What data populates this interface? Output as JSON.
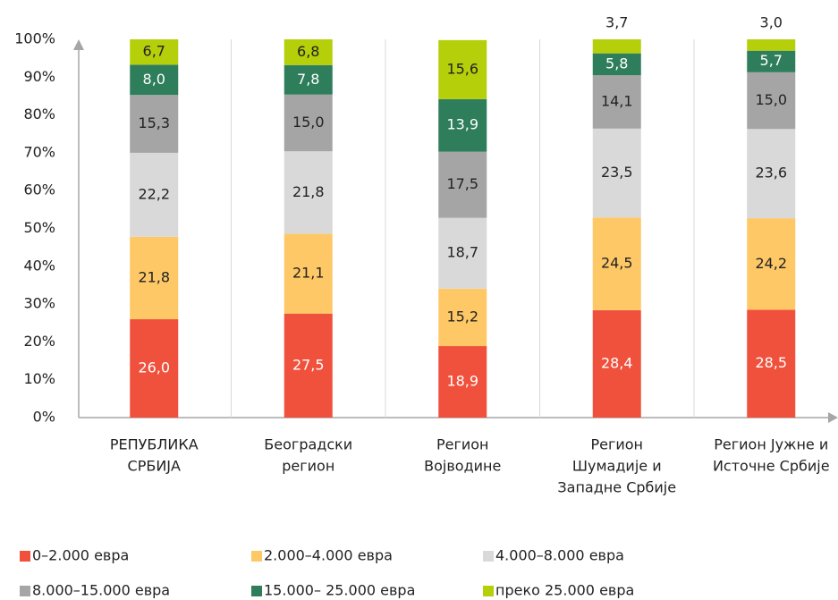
{
  "chart_data": {
    "type": "stacked_bar",
    "categories": [
      [
        "РЕПУБЛИКА",
        "СРБИЈА"
      ],
      [
        "Београдски",
        "регион"
      ],
      [
        "Регион",
        "Војводине"
      ],
      [
        "Регион",
        "Шумадије и",
        "Западне Србије"
      ],
      [
        "Регион Јужне и",
        "Источне Србије"
      ]
    ],
    "series": [
      {
        "name": "0–2.000 евра",
        "color": "#f0513c",
        "label_color": "#ffffff",
        "values": [
          26.0,
          27.5,
          18.9,
          28.4,
          28.5
        ],
        "value_labels": [
          "26,0",
          "27,5",
          "18,9",
          "28,4",
          "28,5"
        ]
      },
      {
        "name": "2.000–4.000 евра",
        "color": "#fec867",
        "label_color": "#222222",
        "values": [
          21.8,
          21.1,
          15.2,
          24.5,
          24.2
        ],
        "value_labels": [
          "21,8",
          "21,1",
          "15,2",
          "24,5",
          "24,2"
        ]
      },
      {
        "name": "4.000–8.000 евра",
        "color": "#d9d9d9",
        "label_color": "#222222",
        "values": [
          22.2,
          21.8,
          18.7,
          23.5,
          23.6
        ],
        "value_labels": [
          "22,2",
          "21,8",
          "18,7",
          "23,5",
          "23,6"
        ]
      },
      {
        "name": "8.000–15.000 евра",
        "color": "#a5a5a5",
        "label_color": "#222222",
        "values": [
          15.3,
          15.0,
          17.5,
          14.1,
          15.0
        ],
        "value_labels": [
          "15,3",
          "15,0",
          "17,5",
          "14,1",
          "15,0"
        ]
      },
      {
        "name": "15.000– 25.000 евра",
        "color": "#2e7d5b",
        "label_color": "#ffffff",
        "values": [
          8.0,
          7.8,
          13.9,
          5.8,
          5.7
        ],
        "value_labels": [
          "8,0",
          "7,8",
          "13,9",
          "5,8",
          "5,7"
        ]
      },
      {
        "name": "преко 25.000 евра",
        "color": "#b5cf0a",
        "label_color": "#222222",
        "values": [
          6.7,
          6.8,
          15.6,
          3.7,
          3.0
        ],
        "value_labels": [
          "6,7",
          "6,8",
          "15,6",
          "3,7",
          "3,0"
        ]
      }
    ],
    "ylim": [
      0,
      100
    ],
    "yticks": [
      {
        "value": 0,
        "label": "0%"
      },
      {
        "value": 10,
        "label": "10%"
      },
      {
        "value": 20,
        "label": "20%"
      },
      {
        "value": 30,
        "label": "30%"
      },
      {
        "value": 40,
        "label": "40%"
      },
      {
        "value": 50,
        "label": "50%"
      },
      {
        "value": 60,
        "label": "60%"
      },
      {
        "value": 70,
        "label": "70%"
      },
      {
        "value": 80,
        "label": "80%"
      },
      {
        "value": 90,
        "label": "90%"
      },
      {
        "value": 100,
        "label": "100%"
      }
    ]
  }
}
